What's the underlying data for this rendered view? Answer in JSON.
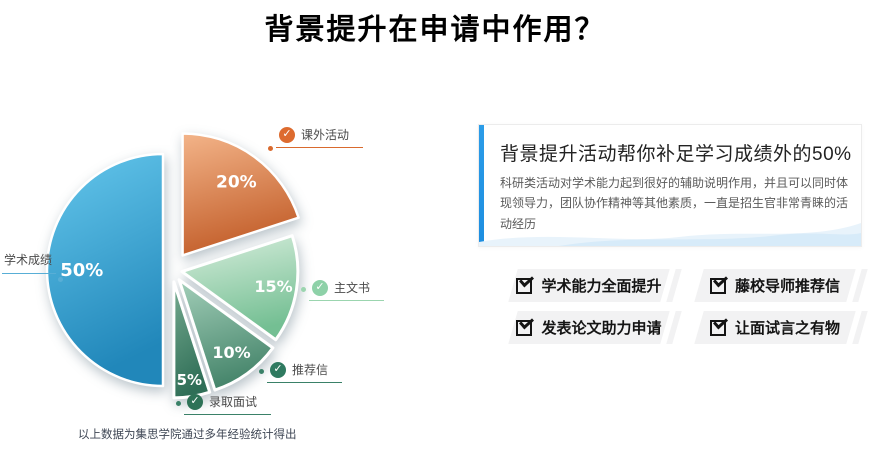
{
  "page_title": "背景提升在申请中作用？",
  "chart_data": {
    "type": "pie",
    "title": "背景提升在申请中作用？",
    "unit": "%",
    "labels": [
      "课外活动",
      "主文书",
      "推荐信",
      "录取面试",
      "学术成绩"
    ],
    "values": [
      20,
      15,
      10,
      5,
      50
    ],
    "percent_labels": [
      "20%",
      "15%",
      "10%",
      "5%",
      "50%"
    ],
    "start_angle_deg": 0,
    "direction": "clockwise",
    "legend_position": "around-slices",
    "slice_gradients": [
      [
        "#f3b489",
        "#c35f2b"
      ],
      [
        "#d8eedd",
        "#74bf93"
      ],
      [
        "#a3cfb9",
        "#47866c"
      ],
      [
        "#76ab90",
        "#2f6e57"
      ],
      [
        "#65c7ec",
        "#2187ba"
      ]
    ],
    "legend_colors": [
      {
        "check": "#dd6b2f",
        "line": "#d96a2e"
      },
      {
        "check": "#8ed1a8",
        "line": "#9bd5af"
      },
      {
        "check": "#2f7a60",
        "line": "#3a8168"
      },
      {
        "check": "#2e7257",
        "line": "#3a8168"
      },
      {
        "check": null,
        "line": "#58aed6"
      }
    ],
    "legend_check_glyph": "✓",
    "caption": "以上数据为集思学院通过多年经验统计得出"
  },
  "panel": {
    "accent_color": "#2b9ce8",
    "card": {
      "title": "背景提升活动帮你补足学习成绩外的50%",
      "body": "科研类活动对学术能力起到很好的辅助说明作用，并且可以同时体现领导力，团队协作精神等其他素质，一直是招生官非常青睐的活动经历"
    },
    "features": [
      "学术能力全面提升",
      "藤校导师推荐信",
      "发表论文助力申请",
      "让面试言之有物"
    ]
  }
}
